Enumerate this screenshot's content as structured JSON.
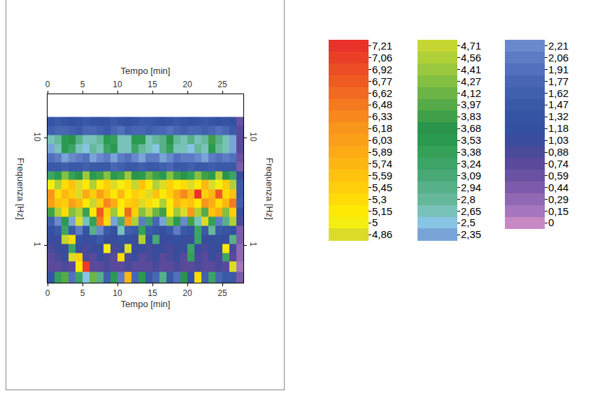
{
  "chart_data": {
    "type": "heatmap",
    "x_label": "Tempo [min]",
    "y_label": "Frequenza [Hz]",
    "log": "y",
    "xlim": [
      0,
      28
    ],
    "xticks": [
      0,
      5,
      10,
      15,
      20,
      25
    ],
    "ylim": [
      0.45,
      25.6
    ],
    "yticks": [
      1,
      10
    ],
    "x": [
      0.5,
      1.5,
      2.5,
      3.5,
      4.5,
      5.5,
      6.5,
      7.5,
      8.5,
      9.5,
      10.5,
      11.5,
      12.5,
      13.5,
      14.5,
      15.5,
      16.5,
      17.5,
      18.5,
      19.5,
      20.5,
      21.5,
      22.5,
      23.5,
      24.5,
      25.5,
      26.5,
      27.5
    ],
    "y": [
      0.5,
      0.64,
      0.78,
      0.94,
      1.14,
      1.39,
      1.69,
      2.05,
      2.5,
      3.0,
      3.7,
      4.5,
      5.4,
      6.6,
      8.0,
      9.7,
      11.8,
      14.3
    ],
    "z": [
      [
        1.3,
        3.4,
        4.0,
        1.9,
        3.2,
        2.5,
        4.1,
        3.0,
        1.6,
        3.5,
        2.1,
        5.8,
        1.8,
        3.6,
        1.5,
        1.7,
        2.9,
        1.4,
        1.9,
        3.7,
        1.3,
        5.3,
        1.6,
        3.3,
        1.8,
        1.5,
        1.4,
        0.4
      ],
      [
        0.7,
        0.8,
        0.9,
        0.8,
        5.1,
        7.1,
        0.8,
        0.7,
        0.9,
        0.8,
        0.7,
        0.9,
        0.8,
        0.7,
        0.8,
        0.9,
        0.7,
        0.8,
        0.9,
        0.7,
        0.8,
        0.9,
        0.7,
        0.8,
        0.9,
        0.8,
        4.9,
        0.2
      ],
      [
        0.8,
        0.9,
        1.0,
        4.8,
        5.4,
        0.9,
        0.8,
        1.0,
        0.9,
        0.8,
        5.3,
        0.9,
        1.0,
        0.8,
        0.9,
        1.0,
        0.8,
        0.9,
        1.0,
        0.8,
        3.4,
        0.9,
        0.8,
        1.0,
        0.9,
        3.2,
        0.8,
        0.3
      ],
      [
        0.9,
        1.0,
        1.1,
        3.2,
        1.0,
        0.9,
        1.0,
        1.1,
        5.0,
        0.9,
        1.0,
        4.9,
        1.0,
        1.1,
        0.9,
        1.0,
        1.1,
        0.9,
        1.0,
        1.1,
        3.3,
        1.0,
        0.9,
        1.1,
        1.0,
        5.1,
        0.9,
        0.3
      ],
      [
        1.0,
        1.1,
        4.7,
        5.3,
        1.3,
        1.0,
        1.2,
        1.4,
        1.1,
        1.0,
        1.3,
        1.2,
        1.1,
        4.6,
        1.2,
        3.1,
        1.0,
        1.1,
        1.2,
        1.0,
        1.1,
        3.2,
        1.0,
        1.1,
        1.2,
        1.0,
        3.0,
        0.4
      ],
      [
        1.2,
        1.4,
        3.2,
        1.5,
        2.1,
        1.3,
        3.0,
        2.2,
        1.5,
        1.2,
        2.6,
        1.6,
        1.4,
        3.4,
        1.5,
        1.3,
        1.2,
        1.4,
        2.0,
        1.5,
        1.3,
        3.3,
        1.4,
        2.8,
        1.5,
        1.3,
        1.2,
        0.5
      ],
      [
        1.6,
        2.2,
        3.5,
        2.4,
        4.8,
        2.6,
        3.4,
        6.5,
        5.3,
        2.3,
        3.1,
        6.1,
        4.6,
        2.0,
        3.3,
        1.8,
        2.4,
        4.2,
        3.6,
        2.2,
        3.8,
        2.6,
        4.9,
        3.4,
        2.1,
        3.0,
        4.6,
        0.9
      ],
      [
        3.8,
        4.5,
        5.3,
        4.2,
        4.6,
        3.9,
        5.2,
        6.8,
        5.5,
        4.4,
        5.0,
        6.6,
        5.4,
        4.3,
        4.7,
        4.1,
        3.9,
        5.1,
        4.4,
        4.8,
        6.2,
        4.5,
        4.0,
        5.6,
        5.9,
        4.2,
        5.4,
        1.2
      ],
      [
        6.1,
        5.6,
        5.4,
        6.0,
        5.7,
        5.2,
        4.7,
        5.5,
        6.3,
        5.9,
        5.1,
        5.4,
        5.6,
        4.8,
        5.3,
        5.0,
        4.6,
        5.2,
        5.8,
        5.4,
        5.6,
        5.1,
        6.2,
        5.9,
        5.3,
        5.7,
        6.5,
        1.6
      ],
      [
        6.2,
        5.3,
        5.8,
        5.5,
        4.8,
        5.9,
        5.4,
        6.0,
        5.6,
        5.2,
        5.8,
        5.1,
        5.5,
        5.3,
        4.9,
        5.6,
        5.2,
        5.4,
        5.9,
        6.3,
        5.7,
        7.2,
        5.5,
        5.8,
        6.7,
        5.3,
        5.6,
        1.5
      ],
      [
        5.0,
        4.6,
        5.3,
        5.6,
        4.9,
        5.2,
        4.5,
        5.1,
        5.4,
        4.8,
        5.0,
        5.3,
        4.7,
        5.6,
        5.2,
        4.6,
        4.9,
        5.5,
        5.1,
        5.3,
        4.8,
        5.2,
        5.7,
        4.9,
        5.0,
        5.4,
        4.6,
        1.4
      ],
      [
        3.2,
        3.6,
        4.3,
        3.4,
        3.7,
        4.4,
        3.5,
        3.8,
        4.2,
        3.6,
        3.9,
        4.4,
        3.7,
        3.5,
        4.1,
        3.8,
        3.6,
        4.3,
        3.9,
        3.7,
        3.4,
        4.2,
        3.8,
        3.6,
        4.5,
        3.7,
        3.3,
        1.1
      ],
      [
        1.4,
        1.5,
        1.6,
        1.5,
        1.4,
        1.6,
        1.5,
        1.4,
        1.5,
        1.7,
        1.6,
        1.4,
        1.5,
        1.6,
        1.4,
        1.5,
        1.6,
        1.7,
        1.5,
        1.4,
        1.6,
        1.5,
        1.4,
        1.6,
        1.5,
        1.4,
        1.5,
        0.5
      ],
      [
        1.9,
        2.1,
        2.3,
        2.2,
        2.0,
        1.9,
        2.4,
        2.2,
        2.0,
        2.3,
        2.1,
        1.9,
        2.2,
        2.4,
        2.1,
        2.0,
        2.3,
        2.2,
        1.9,
        2.1,
        2.0,
        2.2,
        2.3,
        2.1,
        1.9,
        2.0,
        1.9,
        0.6
      ],
      [
        2.4,
        2.7,
        3.5,
        3.3,
        2.6,
        2.5,
        2.8,
        2.6,
        3.2,
        3.6,
        2.6,
        2.7,
        3.3,
        2.8,
        2.6,
        2.5,
        2.9,
        3.4,
        2.7,
        2.6,
        2.5,
        2.8,
        2.6,
        3.6,
        2.8,
        2.6,
        2.3,
        0.7
      ],
      [
        2.6,
        2.8,
        3.6,
        3.7,
        2.9,
        2.7,
        2.6,
        2.8,
        3.5,
        3.4,
        2.7,
        2.6,
        3.6,
        3.5,
        2.7,
        2.8,
        2.9,
        3.7,
        2.8,
        2.7,
        2.9,
        2.6,
        2.8,
        3.8,
        3.0,
        2.7,
        2.4,
        0.8
      ],
      [
        1.6,
        1.7,
        1.8,
        1.6,
        1.5,
        1.7,
        1.8,
        1.6,
        1.5,
        1.7,
        1.9,
        1.6,
        1.7,
        1.8,
        1.6,
        1.7,
        1.8,
        1.9,
        1.7,
        1.6,
        1.8,
        1.7,
        1.6,
        1.8,
        1.9,
        1.7,
        1.5,
        0.7
      ],
      [
        1.3,
        1.4,
        1.3,
        1.2,
        1.3,
        1.4,
        1.3,
        1.2,
        1.3,
        1.4,
        1.3,
        1.2,
        1.3,
        1.4,
        1.5,
        1.3,
        1.2,
        1.3,
        1.4,
        1.3,
        1.2,
        1.3,
        1.4,
        1.3,
        1.2,
        1.3,
        1.2,
        0.6
      ]
    ],
    "colorbar": {
      "range": [
        0,
        7.21
      ],
      "ticks": [
        {
          "value": 7.21,
          "label": "7,21"
        },
        {
          "value": 7.06,
          "label": "7,06"
        },
        {
          "value": 6.92,
          "label": "6,92"
        },
        {
          "value": 6.77,
          "label": "6,77"
        },
        {
          "value": 6.62,
          "label": "6,62"
        },
        {
          "value": 6.48,
          "label": "6,48"
        },
        {
          "value": 6.33,
          "label": "6,33"
        },
        {
          "value": 6.18,
          "label": "6,18"
        },
        {
          "value": 6.03,
          "label": "6,03"
        },
        {
          "value": 5.89,
          "label": "5,89"
        },
        {
          "value": 5.74,
          "label": "5,74"
        },
        {
          "value": 5.59,
          "label": "5,59"
        },
        {
          "value": 5.45,
          "label": "5,45"
        },
        {
          "value": 5.3,
          "label": "5,3"
        },
        {
          "value": 5.15,
          "label": "5,15"
        },
        5,
        {
          "value": 4.86,
          "label": "4,86"
        },
        {
          "value": 4.71,
          "label": "4,71"
        },
        {
          "value": 4.56,
          "label": "4,56"
        },
        {
          "value": 4.41,
          "label": "4,41"
        },
        {
          "value": 4.27,
          "label": "4,27"
        },
        {
          "value": 4.12,
          "label": "4,12"
        },
        {
          "value": 3.97,
          "label": "3,97"
        },
        {
          "value": 3.83,
          "label": "3,83"
        },
        {
          "value": 3.68,
          "label": "3,68"
        },
        {
          "value": 3.53,
          "label": "3,53"
        },
        {
          "value": 3.38,
          "label": "3,38"
        },
        {
          "value": 3.24,
          "label": "3,24"
        },
        {
          "value": 3.09,
          "label": "3,09"
        },
        {
          "value": 2.94,
          "label": "2,94"
        },
        {
          "value": 2.8,
          "label": "2,8"
        },
        {
          "value": 2.65,
          "label": "2,65"
        },
        {
          "value": 2.5,
          "label": "2,5"
        },
        {
          "value": 2.35,
          "label": "2,35"
        },
        {
          "value": 2.21,
          "label": "2,21"
        },
        {
          "value": 2.06,
          "label": "2,06"
        },
        {
          "value": 1.91,
          "label": "1,91"
        },
        {
          "value": 1.77,
          "label": "1,77"
        },
        {
          "value": 1.62,
          "label": "1,62"
        },
        {
          "value": 1.47,
          "label": "1,47"
        },
        {
          "value": 1.32,
          "label": "1,32"
        },
        {
          "value": 1.18,
          "label": "1,18"
        },
        {
          "value": 1.03,
          "label": "1,03"
        },
        {
          "value": 0.88,
          "label": "0,88"
        },
        {
          "value": 0.74,
          "label": "0,74"
        },
        {
          "value": 0.59,
          "label": "0,59"
        },
        {
          "value": 0.44,
          "label": "0,44"
        },
        {
          "value": 0.29,
          "label": "0,29"
        },
        {
          "value": 0.15,
          "label": "0,15"
        },
        0
      ],
      "colors": [
        "#e8322a",
        "#ea3f26",
        "#ed4d24",
        "#ef5a22",
        "#f16a22",
        "#f47a20",
        "#f6881e",
        "#f8961c",
        "#fa9f18",
        "#fcab14",
        "#fdb712",
        "#fec30e",
        "#ffcf0b",
        "#ffdc08",
        "#fee905",
        "#f4ef10",
        "#dcdc28",
        "#c6d632",
        "#b0d038",
        "#9ac83e",
        "#84c042",
        "#6cb445",
        "#56aa48",
        "#40a04a",
        "#2a944c",
        "#2a9a50",
        "#34a058",
        "#3ca466",
        "#48a876",
        "#56b088",
        "#66b89a",
        "#78c2ba",
        "#88c4e4",
        "#78a4d8",
        "#6a88cc",
        "#5e7cc4",
        "#5270bc",
        "#4866b4",
        "#4060ae",
        "#3a5aa8",
        "#3654a4",
        "#3450a0",
        "#3a4c9c",
        "#4a4a9a",
        "#5a4a9c",
        "#6a52a2",
        "#7c5caa",
        "#9068b4",
        "#a676be",
        "#c888c4"
      ]
    }
  }
}
